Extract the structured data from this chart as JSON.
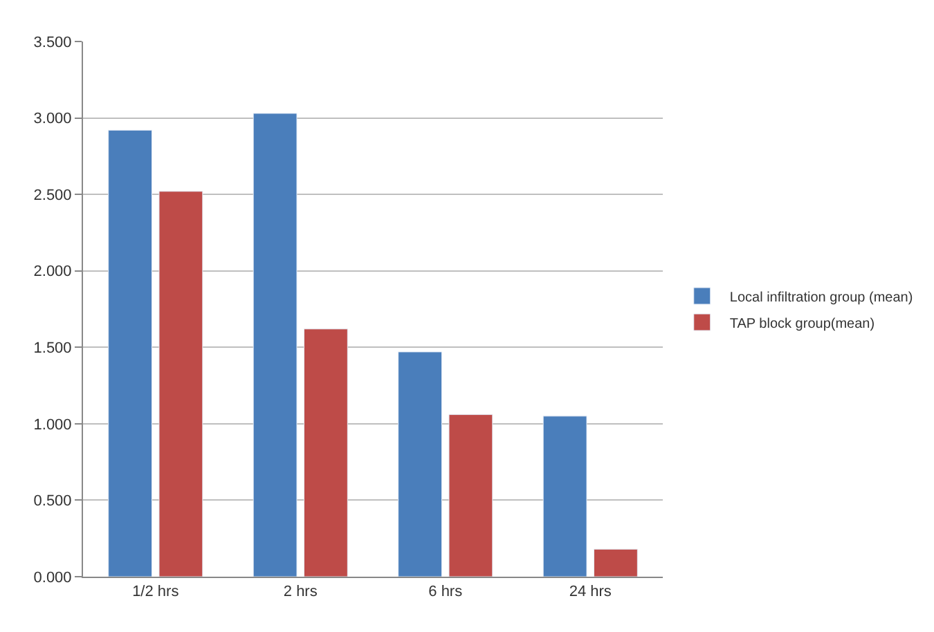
{
  "chart_data": {
    "type": "bar",
    "categories": [
      "1/2 hrs",
      "2 hrs",
      "6 hrs",
      "24 hrs"
    ],
    "series": [
      {
        "name": "Local infiltration group (mean)",
        "color": "#4a7ebb",
        "values": [
          2.92,
          3.03,
          1.47,
          1.05
        ]
      },
      {
        "name": "TAP block group(mean)",
        "color": "#be4b48",
        "values": [
          2.52,
          1.62,
          1.06,
          0.18
        ]
      }
    ],
    "ylim": [
      0,
      3.5
    ],
    "yticks": [
      {
        "value": 0,
        "label": "0.000"
      },
      {
        "value": 0.5,
        "label": "0.500"
      },
      {
        "value": 1,
        "label": "1.000"
      },
      {
        "value": 1.5,
        "label": "1.500"
      },
      {
        "value": 2,
        "label": "2.000"
      },
      {
        "value": 2.5,
        "label": "2.500"
      },
      {
        "value": 3,
        "label": "3.000"
      },
      {
        "value": 3.5,
        "label": "3.500"
      }
    ],
    "grid": "y",
    "legend": "right"
  }
}
